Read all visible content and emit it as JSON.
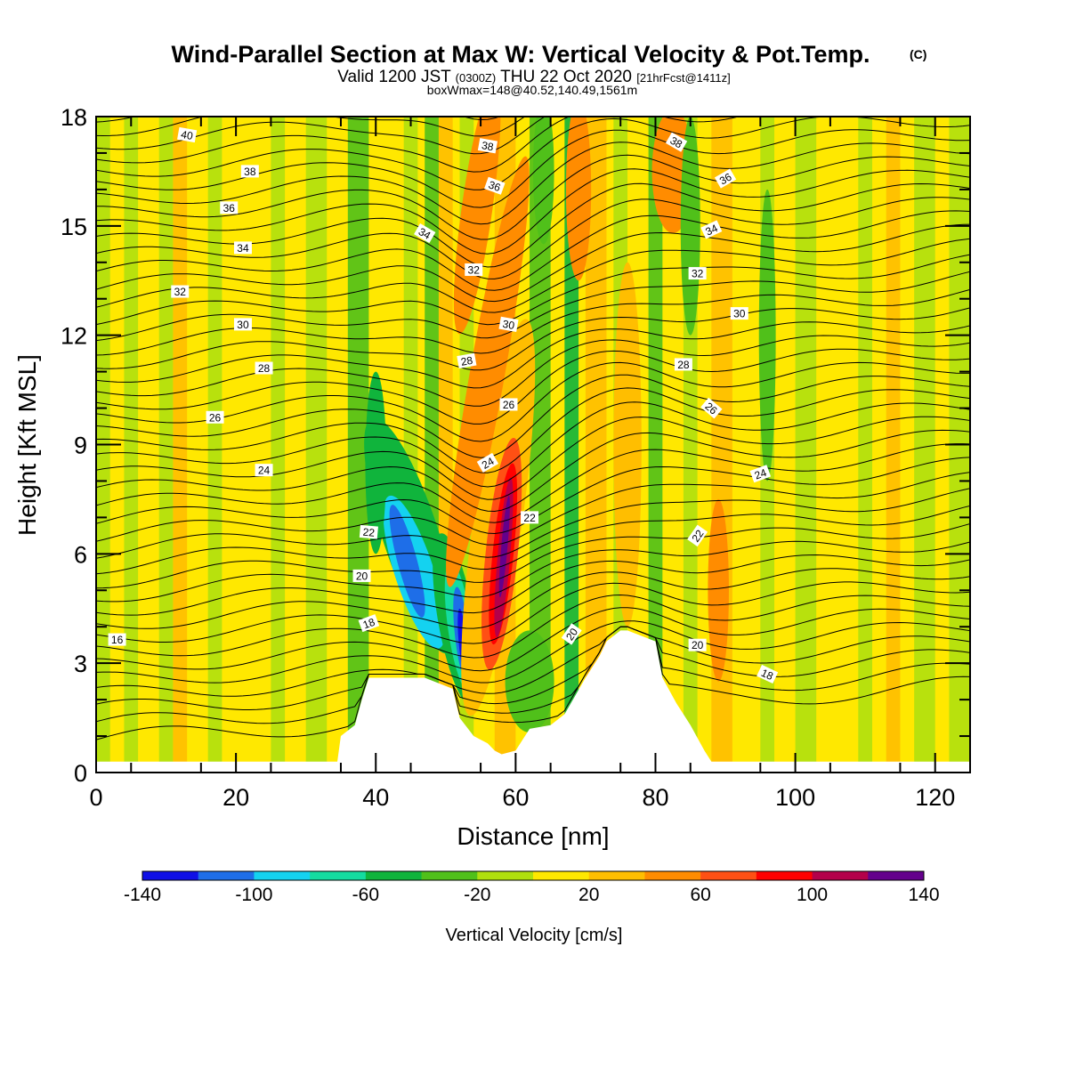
{
  "chart_data": {
    "type": "heatmap",
    "title": "Wind-Parallel Section at Max W: Vertical Velocity & Pot.Temp.",
    "title_mark": "(C)",
    "subtitle": {
      "valid": "Valid 1200 JST",
      "zulu": "(0300Z)",
      "date": "THU 22 Oct 2020",
      "fcst": "[21hrFcst@1411z]"
    },
    "subtitle2": "boxWmax=148@40.52,140.49,1561m",
    "xlabel": "Distance [nm]",
    "ylabel": "Height [Kft MSL]",
    "xlim": [
      0,
      125
    ],
    "ylim": [
      0,
      18
    ],
    "x_ticks": [
      0,
      20,
      40,
      60,
      80,
      100,
      120
    ],
    "y_ticks": [
      0,
      3,
      6,
      9,
      12,
      15,
      18
    ],
    "colorbar": {
      "label": "Vertical Velocity [cm/s]",
      "tick_labels": [
        "-140",
        "-100",
        "-60",
        "-20",
        "20",
        "60",
        "100",
        "140"
      ],
      "colors": [
        "#1010e6",
        "#1e6ee8",
        "#14d2f0",
        "#14dca0",
        "#10b43c",
        "#50c01a",
        "#b0e00e",
        "#ffe800",
        "#ffbe00",
        "#ff8c00",
        "#ff5014",
        "#ff0000",
        "#b4004a",
        "#64008c"
      ]
    },
    "theta_contour_labels": [
      "16",
      "18",
      "20",
      "22",
      "24",
      "26",
      "28",
      "30",
      "32",
      "34",
      "36",
      "38",
      "40"
    ],
    "terrain_profile_x": [
      0,
      34.5,
      35,
      37,
      38,
      39,
      42,
      47,
      51,
      52,
      54,
      56,
      57,
      58,
      60,
      62,
      65,
      67,
      70,
      72,
      73,
      75,
      76,
      80,
      81,
      83,
      85,
      87,
      88,
      125
    ],
    "terrain_profile_kft": [
      0.3,
      0.3,
      1.0,
      1.3,
      2.0,
      2.6,
      2.6,
      2.6,
      2.3,
      1.5,
      1.0,
      0.8,
      0.6,
      0.5,
      0.6,
      1.2,
      1.3,
      1.6,
      2.6,
      3.2,
      3.6,
      3.9,
      3.9,
      3.6,
      2.6,
      1.9,
      1.3,
      0.6,
      0.3,
      0.3
    ],
    "w_max_cm_s": 148
  }
}
